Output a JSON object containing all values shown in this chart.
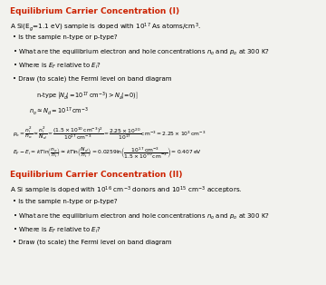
{
  "bg_color": "#f2f2ee",
  "title1_color": "#cc2200",
  "title2_color": "#cc2200",
  "figsize": [
    3.6,
    3.14
  ],
  "dpi": 100
}
